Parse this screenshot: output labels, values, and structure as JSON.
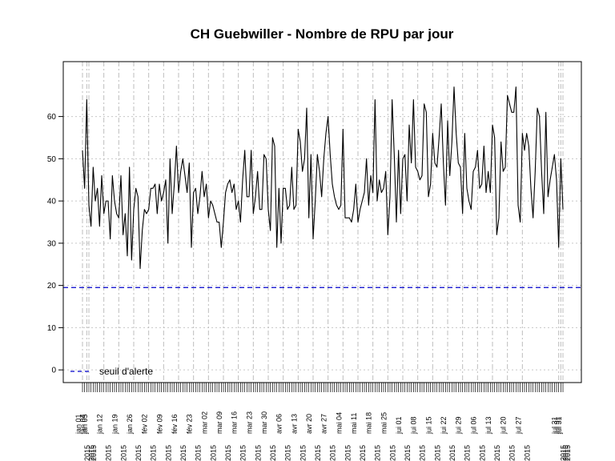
{
  "chart_data": {
    "type": "line",
    "title": "CH Guebwiller  - Nombre de RPU par jour",
    "xlabel": "",
    "ylabel": "",
    "ylim": [
      -3,
      73
    ],
    "yticks": [
      0,
      10,
      20,
      30,
      40,
      50,
      60
    ],
    "grid": true,
    "x_ticks": [
      "jan 01\n2015",
      "jan 04\n2015",
      "jan 05\n2015",
      "jan 12\n2015",
      "jan 19\n2015",
      "jan 26\n2015",
      "fév 02\n2015",
      "fév 09\n2015",
      "fév 16\n2015",
      "fév 23\n2015",
      "mar 02\n2015",
      "mar 09\n2015",
      "mar 16\n2015",
      "mar 23\n2015",
      "mar 30\n2015",
      "avr 06\n2015",
      "avr 13\n2015",
      "avr 20\n2015",
      "avr 27\n2015",
      "mai 04\n2015",
      "mai 11\n2015",
      "mai 18\n2015",
      "mai 25\n2015",
      "jui 01\n2015",
      "jui 08\n2015",
      "jui 15\n2015",
      "jui 22\n2015",
      "jui 29\n2015",
      "jul 06\n2015",
      "jul 13\n2015",
      "jul 20\n2015",
      "jul 27\n2015",
      "jul 31\n2015",
      "jul 31\n2015",
      "jul 31\n2015"
    ],
    "series": [
      {
        "values": [
          52,
          43,
          64,
          39,
          34,
          48,
          40,
          43,
          34,
          46,
          37,
          40,
          40,
          31,
          46,
          40,
          37,
          36,
          46,
          32,
          37,
          27,
          48,
          26,
          38,
          43,
          41,
          24,
          33,
          38,
          37,
          38,
          43,
          43,
          44,
          37,
          44,
          40,
          42,
          45,
          30,
          50,
          37,
          44,
          53,
          42,
          47,
          50,
          46,
          42,
          49,
          29,
          42,
          43,
          37,
          41,
          47,
          41,
          44,
          36,
          40,
          39,
          37,
          35,
          35,
          29,
          35,
          42,
          44,
          45,
          42,
          44,
          38,
          40,
          35,
          45,
          52,
          41,
          41,
          52,
          37,
          41,
          47,
          38,
          38,
          51,
          50,
          38,
          33,
          55,
          53,
          29,
          43,
          30,
          43,
          43,
          38,
          39,
          48,
          38,
          39,
          57,
          54,
          47,
          50,
          62,
          36,
          51,
          31,
          40,
          51,
          47,
          41,
          50,
          56,
          60,
          51,
          44,
          41,
          39,
          38,
          39,
          57,
          36,
          36,
          36,
          35,
          38,
          44,
          35,
          38,
          40,
          42,
          50,
          39,
          46,
          42,
          64,
          40,
          45,
          42,
          43,
          47,
          32,
          41,
          64,
          51,
          35,
          52,
          37,
          50,
          51,
          40,
          58,
          49,
          64,
          48,
          47,
          45,
          46,
          63,
          61,
          41,
          44,
          56,
          49,
          48,
          55,
          63,
          49,
          39,
          59,
          46,
          54,
          67,
          56,
          49,
          48,
          37,
          56,
          43,
          40,
          38,
          47,
          48,
          52,
          43,
          44,
          53,
          42,
          47,
          42,
          58,
          55,
          32,
          36,
          54,
          47,
          48,
          65,
          63,
          61,
          61,
          67,
          39,
          35,
          56,
          52,
          56,
          53,
          43,
          36,
          47,
          62,
          60,
          47,
          37,
          61,
          41,
          45,
          48,
          51,
          45,
          29,
          50,
          38
        ],
        "color": "#000000"
      },
      {
        "name": "seuil d'alerte",
        "values": [
          19.5
        ],
        "color": "#0000cc",
        "style": "dashed-threshold"
      }
    ],
    "legend": {
      "placement": "bottom-left",
      "entries": [
        "seuil d'alerte"
      ]
    }
  }
}
